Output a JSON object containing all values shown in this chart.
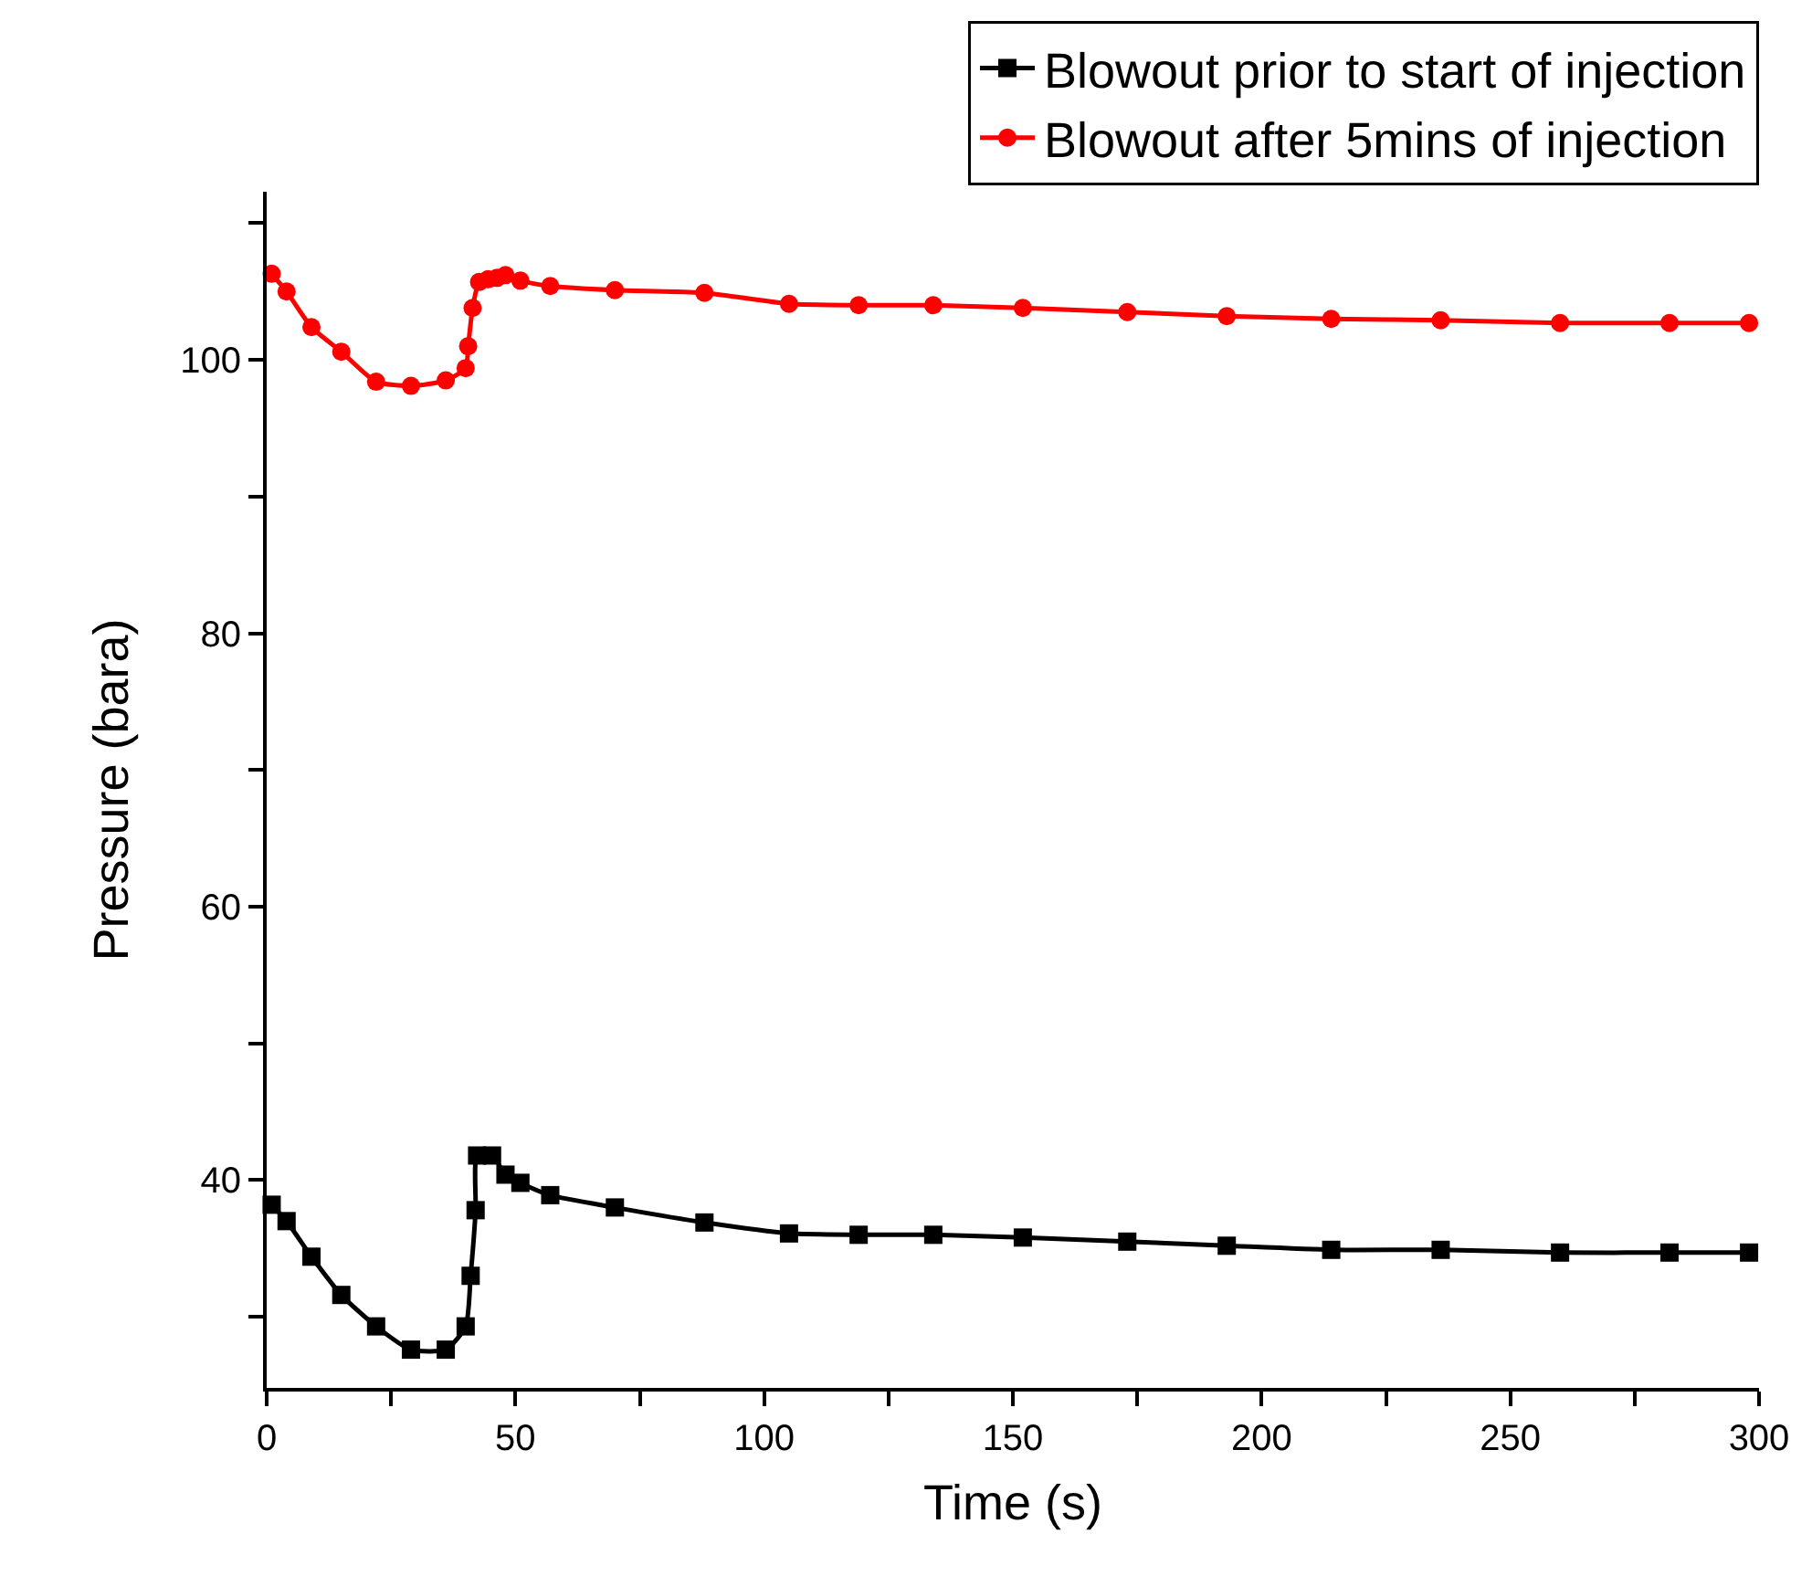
{
  "chart_data": {
    "type": "line",
    "xlabel": "Time (s)",
    "ylabel": "Pressure (bara)",
    "xlim": [
      0,
      300
    ],
    "xticks": [
      0,
      {
        "value": 25,
        "label": null
      },
      50,
      {
        "value": 75,
        "label": null
      },
      100,
      {
        "value": 125,
        "label": null
      },
      150,
      {
        "value": 175,
        "label": null
      },
      200,
      {
        "value": 225,
        "label": null
      },
      250,
      {
        "value": 275,
        "label": null
      },
      300
    ],
    "ylim": [
      24.8,
      112.3
    ],
    "yticks": [
      {
        "value": 30,
        "label": null
      },
      40,
      {
        "value": 50,
        "label": null
      },
      60,
      {
        "value": 70,
        "label": null
      },
      80,
      {
        "value": 90,
        "label": null
      },
      100,
      {
        "value": 110,
        "label": null
      }
    ],
    "grid": false,
    "legend": "top right",
    "line_style": "solid",
    "series": [
      {
        "name": "Blowout prior to start of injection",
        "color": "#000000",
        "marker": "square",
        "x": [
          1,
          4,
          9,
          15,
          22,
          29,
          36,
          40,
          41,
          42,
          42.3,
          45.3,
          48,
          51,
          57,
          70,
          88,
          105,
          119,
          134,
          152,
          173,
          193,
          214,
          236,
          260,
          282,
          298
        ],
        "values": [
          38.2,
          37,
          34.4,
          31.6,
          29.3,
          27.6,
          27.6,
          29.3,
          33,
          37.8,
          41.8,
          41.8,
          40.4,
          39.8,
          38.9,
          38,
          36.9,
          36.1,
          36,
          36,
          35.8,
          35.5,
          35.2,
          34.9,
          34.9,
          34.7,
          34.7,
          34.7
        ]
      },
      {
        "name": "Blowout after 5mins of injection",
        "color": "#ff0000",
        "marker": "circle",
        "x": [
          1,
          4,
          9,
          15,
          22,
          29,
          36,
          40,
          40.5,
          41.4,
          42.7,
          44.5,
          46.3,
          48,
          51,
          57,
          70,
          88,
          105,
          119,
          134,
          152,
          173,
          193,
          214,
          236,
          260,
          282,
          298
        ],
        "values": [
          106.3,
          105,
          102.4,
          100.6,
          98.4,
          98.1,
          98.5,
          99.4,
          101,
          103.8,
          105.7,
          105.9,
          106,
          106.2,
          105.8,
          105.4,
          105.1,
          104.9,
          104.1,
          104,
          104,
          103.8,
          103.5,
          103.2,
          103,
          102.9,
          102.7,
          102.7,
          102.7
        ]
      }
    ]
  }
}
